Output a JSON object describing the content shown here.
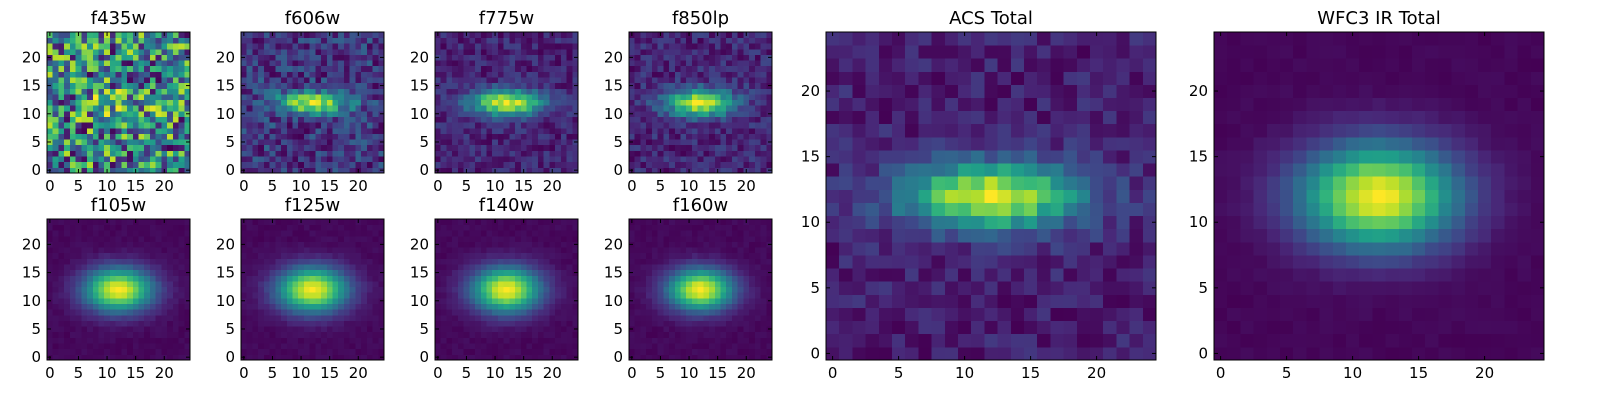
{
  "figure": {
    "colormap": "viridis",
    "colormap_stops": [
      "#440154",
      "#482878",
      "#3e4989",
      "#31688e",
      "#26828e",
      "#1f9e89",
      "#35b779",
      "#6ece58",
      "#b5de2b",
      "#fde725"
    ]
  },
  "chart_data": [
    {
      "type": "heatmap",
      "title": "f435w",
      "grid_size": [
        25,
        25
      ],
      "model": "noise",
      "peak": [
        12,
        12
      ],
      "sigma": [
        5.0,
        2.0
      ],
      "noise": 0.9,
      "seed": 11,
      "xticks": [
        0,
        5,
        10,
        15,
        20
      ],
      "yticks": [
        0,
        5,
        10,
        15,
        20
      ],
      "xlim": [
        -0.5,
        24.5
      ],
      "ylim": [
        -0.5,
        24.5
      ]
    },
    {
      "type": "heatmap",
      "title": "f606w",
      "grid_size": [
        25,
        25
      ],
      "model": "gaussian",
      "peak": [
        12,
        12
      ],
      "sigma": [
        4.5,
        1.3
      ],
      "noise": 0.22,
      "seed": 21,
      "xticks": [
        0,
        5,
        10,
        15,
        20
      ],
      "yticks": [
        0,
        5,
        10,
        15,
        20
      ],
      "xlim": [
        -0.5,
        24.5
      ],
      "ylim": [
        -0.5,
        24.5
      ]
    },
    {
      "type": "heatmap",
      "title": "f775w",
      "grid_size": [
        25,
        25
      ],
      "model": "gaussian",
      "peak": [
        12,
        12
      ],
      "sigma": [
        4.5,
        1.6
      ],
      "noise": 0.12,
      "seed": 31,
      "xticks": [
        0,
        5,
        10,
        15,
        20
      ],
      "yticks": [
        0,
        5,
        10,
        15,
        20
      ],
      "xlim": [
        -0.5,
        24.5
      ],
      "ylim": [
        -0.5,
        24.5
      ]
    },
    {
      "type": "heatmap",
      "title": "f850lp",
      "grid_size": [
        25,
        25
      ],
      "model": "gaussian",
      "peak": [
        12,
        12
      ],
      "sigma": [
        4.2,
        1.7
      ],
      "noise": 0.13,
      "seed": 41,
      "xticks": [
        0,
        5,
        10,
        15,
        20
      ],
      "yticks": [
        0,
        5,
        10,
        15,
        20
      ],
      "xlim": [
        -0.5,
        24.5
      ],
      "ylim": [
        -0.5,
        24.5
      ]
    },
    {
      "type": "heatmap",
      "title": "f105w",
      "grid_size": [
        25,
        25
      ],
      "model": "gaussian",
      "peak": [
        12,
        12
      ],
      "sigma": [
        4.2,
        2.7
      ],
      "noise": 0.02,
      "seed": 51,
      "xticks": [
        0,
        5,
        10,
        15,
        20
      ],
      "yticks": [
        0,
        5,
        10,
        15,
        20
      ],
      "xlim": [
        -0.5,
        24.5
      ],
      "ylim": [
        -0.5,
        24.5
      ]
    },
    {
      "type": "heatmap",
      "title": "f125w",
      "grid_size": [
        25,
        25
      ],
      "model": "gaussian",
      "peak": [
        12,
        12
      ],
      "sigma": [
        4.3,
        2.8
      ],
      "noise": 0.02,
      "seed": 61,
      "xticks": [
        0,
        5,
        10,
        15,
        20
      ],
      "yticks": [
        0,
        5,
        10,
        15,
        20
      ],
      "xlim": [
        -0.5,
        24.5
      ],
      "ylim": [
        -0.5,
        24.5
      ]
    },
    {
      "type": "heatmap",
      "title": "f140w",
      "grid_size": [
        25,
        25
      ],
      "model": "gaussian",
      "peak": [
        12,
        12
      ],
      "sigma": [
        4.2,
        2.8
      ],
      "noise": 0.02,
      "seed": 71,
      "xticks": [
        0,
        5,
        10,
        15,
        20
      ],
      "yticks": [
        0,
        5,
        10,
        15,
        20
      ],
      "xlim": [
        -0.5,
        24.5
      ],
      "ylim": [
        -0.5,
        24.5
      ]
    },
    {
      "type": "heatmap",
      "title": "f160w",
      "grid_size": [
        25,
        25
      ],
      "model": "gaussian",
      "peak": [
        12,
        12
      ],
      "sigma": [
        4.0,
        2.6
      ],
      "noise": 0.02,
      "seed": 81,
      "xticks": [
        0,
        5,
        10,
        15,
        20
      ],
      "yticks": [
        0,
        5,
        10,
        15,
        20
      ],
      "xlim": [
        -0.5,
        24.5
      ],
      "ylim": [
        -0.5,
        24.5
      ]
    },
    {
      "type": "heatmap",
      "title": "ACS Total",
      "grid_size": [
        25,
        25
      ],
      "model": "gaussian",
      "peak": [
        12,
        12
      ],
      "sigma": [
        4.8,
        1.8
      ],
      "noise": 0.1,
      "seed": 91,
      "xticks": [
        0,
        5,
        10,
        15,
        20
      ],
      "yticks": [
        0,
        5,
        10,
        15,
        20
      ],
      "xlim": [
        -0.5,
        24.5
      ],
      "ylim": [
        -0.5,
        24.5
      ]
    },
    {
      "type": "heatmap",
      "title": "WFC3 IR Total",
      "grid_size": [
        25,
        25
      ],
      "model": "gaussian",
      "peak": [
        12,
        12
      ],
      "sigma": [
        4.2,
        2.8
      ],
      "noise": 0.015,
      "seed": 101,
      "xticks": [
        0,
        5,
        10,
        15,
        20
      ],
      "yticks": [
        0,
        5,
        10,
        15,
        20
      ],
      "xlim": [
        -0.5,
        24.5
      ],
      "ylim": [
        -0.5,
        24.5
      ]
    }
  ]
}
